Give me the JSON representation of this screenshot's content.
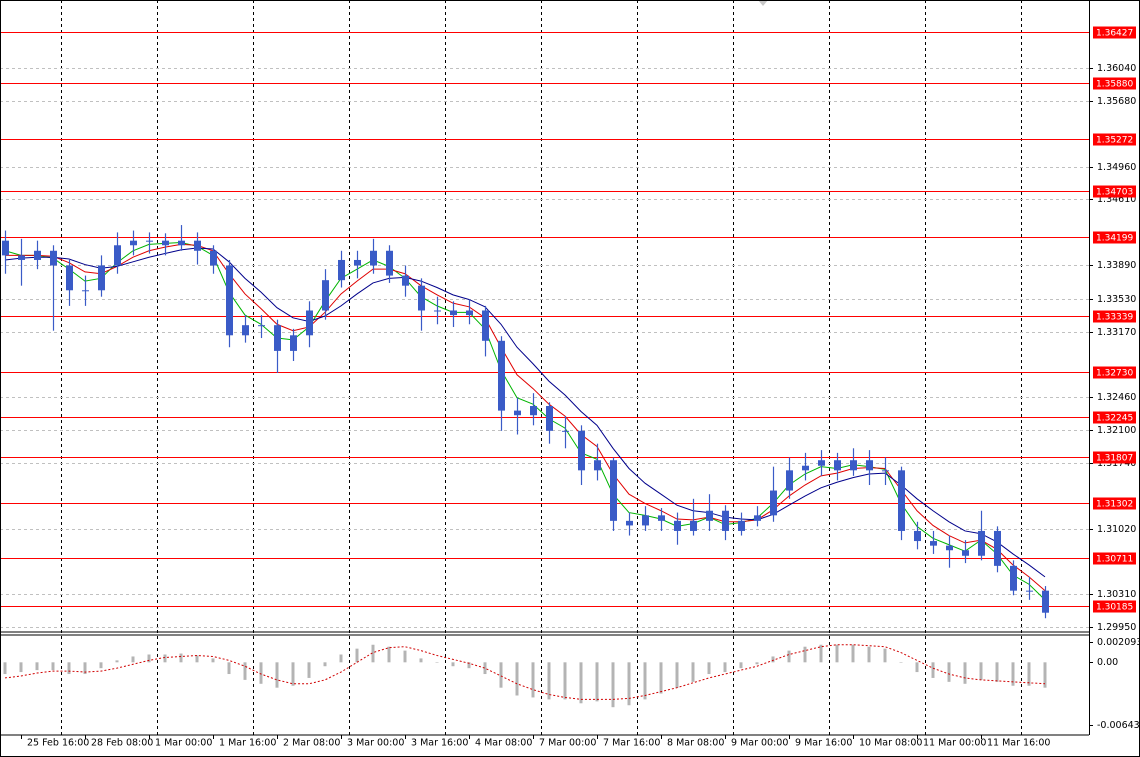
{
  "chart_data": {
    "type": "candlestick",
    "categories": [
      null,
      "25 Feb 16:00",
      null,
      null,
      null,
      "28 Feb 08:00",
      null,
      null,
      null,
      "1 Mar 00:00",
      null,
      null,
      null,
      "1 Mar 16:00",
      null,
      null,
      null,
      "2 Mar 08:00",
      null,
      null,
      null,
      "3 Mar 00:00",
      null,
      null,
      null,
      "3 Mar 16:00",
      null,
      null,
      null,
      "4 Mar 08:00",
      null,
      null,
      null,
      "7 Mar 00:00",
      null,
      null,
      null,
      "7 Mar 16:00",
      null,
      null,
      null,
      "8 Mar 08:00",
      null,
      null,
      null,
      "9 Mar 00:00",
      null,
      null,
      null,
      "9 Mar 16:00",
      null,
      null,
      null,
      "10 Mar 08:00",
      null,
      null,
      null,
      "11 Mar 00:00",
      null,
      null,
      null,
      "11 Mar 16:00",
      null,
      null,
      null,
      null
    ],
    "ohlc": [
      [
        1.3416,
        1.3427,
        1.338,
        1.34
      ],
      [
        1.34,
        1.3418,
        1.3367,
        1.3395
      ],
      [
        1.3395,
        1.3416,
        1.3385,
        1.3405
      ],
      [
        1.3405,
        1.3411,
        1.3318,
        1.3389
      ],
      [
        1.3389,
        1.3395,
        1.3345,
        1.3362
      ],
      [
        1.3362,
        1.3378,
        1.3345,
        1.3362
      ],
      [
        1.3362,
        1.34,
        1.3355,
        1.3389
      ],
      [
        1.3389,
        1.3425,
        1.338,
        1.3411
      ],
      [
        1.3411,
        1.3427,
        1.34,
        1.3416
      ],
      [
        1.3416,
        1.3425,
        1.3402,
        1.3416
      ],
      [
        1.3416,
        1.3424,
        1.34,
        1.3411
      ],
      [
        1.3411,
        1.3433,
        1.3405,
        1.3416
      ],
      [
        1.3416,
        1.3425,
        1.339,
        1.3405
      ],
      [
        1.3405,
        1.3411,
        1.338,
        1.3389
      ],
      [
        1.3389,
        1.3395,
        1.33,
        1.3313
      ],
      [
        1.3313,
        1.3335,
        1.3305,
        1.3324
      ],
      [
        1.3324,
        1.3335,
        1.331,
        1.3324
      ],
      [
        1.3324,
        1.333,
        1.3272,
        1.3296
      ],
      [
        1.3296,
        1.332,
        1.3285,
        1.3313
      ],
      [
        1.3313,
        1.335,
        1.33,
        1.334
      ],
      [
        1.334,
        1.3385,
        1.333,
        1.3373
      ],
      [
        1.3373,
        1.3405,
        1.3365,
        1.3395
      ],
      [
        1.3395,
        1.3405,
        1.3375,
        1.3389
      ],
      [
        1.3389,
        1.3418,
        1.338,
        1.3405
      ],
      [
        1.3405,
        1.3411,
        1.337,
        1.3378
      ],
      [
        1.3378,
        1.3389,
        1.3355,
        1.3367
      ],
      [
        1.3367,
        1.3375,
        1.3318,
        1.334
      ],
      [
        1.334,
        1.3355,
        1.3325,
        1.334
      ],
      [
        1.334,
        1.335,
        1.3322,
        1.3335
      ],
      [
        1.3335,
        1.3352,
        1.3325,
        1.334
      ],
      [
        1.334,
        1.3345,
        1.329,
        1.3307
      ],
      [
        1.3307,
        1.3312,
        1.3209,
        1.3231
      ],
      [
        1.3231,
        1.3245,
        1.3205,
        1.3226
      ],
      [
        1.3226,
        1.325,
        1.3215,
        1.3236
      ],
      [
        1.3236,
        1.324,
        1.3195,
        1.3209
      ],
      [
        1.3209,
        1.3225,
        1.319,
        1.3209
      ],
      [
        1.3209,
        1.3215,
        1.315,
        1.3166
      ],
      [
        1.3166,
        1.3195,
        1.3155,
        1.3177
      ],
      [
        1.3177,
        1.318,
        1.31,
        1.3111
      ],
      [
        1.3111,
        1.312,
        1.3095,
        1.3106
      ],
      [
        1.3106,
        1.3127,
        1.31,
        1.3117
      ],
      [
        1.3117,
        1.3125,
        1.31,
        1.3111
      ],
      [
        1.3111,
        1.312,
        1.3085,
        1.31
      ],
      [
        1.31,
        1.3135,
        1.3095,
        1.3111
      ],
      [
        1.3111,
        1.314,
        1.31,
        1.3122
      ],
      [
        1.3122,
        1.3128,
        1.309,
        1.31
      ],
      [
        1.31,
        1.312,
        1.3095,
        1.3111
      ],
      [
        1.3111,
        1.3127,
        1.3105,
        1.3117
      ],
      [
        1.3117,
        1.317,
        1.311,
        1.3144
      ],
      [
        1.3144,
        1.318,
        1.3135,
        1.3166
      ],
      [
        1.3166,
        1.3185,
        1.3155,
        1.3171
      ],
      [
        1.3171,
        1.3188,
        1.316,
        1.3177
      ],
      [
        1.3177,
        1.3185,
        1.3155,
        1.3166
      ],
      [
        1.3166,
        1.319,
        1.316,
        1.3177
      ],
      [
        1.3177,
        1.3188,
        1.315,
        1.3166
      ],
      [
        1.3166,
        1.318,
        1.315,
        1.3166
      ],
      [
        1.3166,
        1.317,
        1.309,
        1.31
      ],
      [
        1.31,
        1.311,
        1.308,
        1.3089
      ],
      [
        1.3089,
        1.31,
        1.3075,
        1.3084
      ],
      [
        1.3084,
        1.3095,
        1.306,
        1.3079
      ],
      [
        1.3079,
        1.309,
        1.3065,
        1.3073
      ],
      [
        1.3073,
        1.3122,
        1.3068,
        1.31
      ],
      [
        1.31,
        1.3105,
        1.3055,
        1.3062
      ],
      [
        1.3062,
        1.3068,
        1.303,
        1.3035
      ],
      [
        1.3035,
        1.305,
        1.3025,
        1.3035
      ],
      [
        1.3035,
        1.304,
        1.3005,
        1.3011
      ]
    ],
    "color": "#3a5bc7",
    "ylim": [
      1.299,
      1.3678
    ],
    "yticks": [
      {
        "value": 1.3604,
        "label": "1.36040"
      },
      {
        "value": 1.3568,
        "label": "1.35680"
      },
      {
        "value": 1.3496,
        "label": "1.34960"
      },
      {
        "value": 1.3461,
        "label": "1.34610"
      },
      {
        "value": 1.3389,
        "label": "1.33890"
      },
      {
        "value": 1.3353,
        "label": "1.33530"
      },
      {
        "value": 1.3317,
        "label": "1.33170"
      },
      {
        "value": 1.3246,
        "label": "1.32460"
      },
      {
        "value": 1.321,
        "label": "1.32100"
      },
      {
        "value": 1.3174,
        "label": "1.31740"
      },
      {
        "value": 1.3102,
        "label": "1.31020"
      },
      {
        "value": 1.3031,
        "label": "1.30310"
      },
      {
        "value": 1.2995,
        "label": "1.29950"
      }
    ],
    "grid": true,
    "levels": [
      1.36427,
      {
        "value": 1.3588,
        "label": "1.35880"
      },
      1.35272,
      1.34703,
      1.34199,
      1.33339,
      {
        "value": 1.3273,
        "label": "1.32730"
      },
      1.32245,
      1.31807,
      1.31302,
      1.30711,
      1.30185
    ],
    "level_color": "#ff0000",
    "ma": [
      {
        "color": "#00b400",
        "values": [
          1.3405,
          1.34,
          1.34,
          1.3397,
          1.3385,
          1.3372,
          1.3375,
          1.3392,
          1.3405,
          1.3412,
          1.3413,
          1.3414,
          1.341,
          1.34,
          1.336,
          1.3335,
          1.3325,
          1.331,
          1.3308,
          1.3322,
          1.335,
          1.3375,
          1.3385,
          1.3395,
          1.3388,
          1.3375,
          1.3355,
          1.3345,
          1.3338,
          1.3338,
          1.332,
          1.3275,
          1.3245,
          1.3238,
          1.3222,
          1.3212,
          1.3185,
          1.3178,
          1.314,
          1.312,
          1.3117,
          1.3113,
          1.3105,
          1.3108,
          1.3115,
          1.3107,
          1.3109,
          1.3114,
          1.313,
          1.315,
          1.3162,
          1.317,
          1.3168,
          1.3172,
          1.317,
          1.3167,
          1.313,
          1.3105,
          1.3092,
          1.3085,
          1.3078,
          1.309,
          1.3075,
          1.3052,
          1.3042,
          1.3025
        ]
      },
      {
        "color": "#e00000",
        "values": [
          1.34,
          1.34,
          1.34,
          1.3399,
          1.3392,
          1.3382,
          1.338,
          1.3388,
          1.3398,
          1.3405,
          1.3409,
          1.3412,
          1.3411,
          1.3405,
          1.338,
          1.3358,
          1.3342,
          1.3325,
          1.3318,
          1.3322,
          1.3338,
          1.3358,
          1.3372,
          1.3385,
          1.3385,
          1.338,
          1.3367,
          1.3357,
          1.3348,
          1.3344,
          1.3332,
          1.33,
          1.327,
          1.3255,
          1.3238,
          1.3225,
          1.3205,
          1.3192,
          1.3162,
          1.314,
          1.313,
          1.3122,
          1.3113,
          1.3112,
          1.3115,
          1.311,
          1.311,
          1.3112,
          1.3123,
          1.3138,
          1.315,
          1.316,
          1.3163,
          1.3168,
          1.3169,
          1.3168,
          1.3145,
          1.3122,
          1.3106,
          1.3095,
          1.3087,
          1.309,
          1.308,
          1.3063,
          1.305,
          1.3035
        ]
      },
      {
        "color": "#00008b",
        "values": [
          1.3395,
          1.3397,
          1.3398,
          1.3398,
          1.3396,
          1.339,
          1.3386,
          1.3388,
          1.3393,
          1.3398,
          1.3402,
          1.3406,
          1.3408,
          1.3407,
          1.3393,
          1.3375,
          1.336,
          1.3343,
          1.3332,
          1.3328,
          1.3334,
          1.3345,
          1.3358,
          1.337,
          1.3375,
          1.3376,
          1.3372,
          1.3365,
          1.3357,
          1.3352,
          1.3344,
          1.3325,
          1.33,
          1.3282,
          1.3263,
          1.3248,
          1.323,
          1.3215,
          1.319,
          1.3168,
          1.3152,
          1.314,
          1.3128,
          1.3122,
          1.312,
          1.3115,
          1.3113,
          1.3112,
          1.3118,
          1.3128,
          1.3138,
          1.3147,
          1.3153,
          1.3158,
          1.3162,
          1.3163,
          1.315,
          1.3135,
          1.3122,
          1.311,
          1.31,
          1.3097,
          1.3088,
          1.3075,
          1.3063,
          1.305
        ]
      }
    ],
    "macd": {
      "ylim": [
        -0.00745,
        0.0028
      ],
      "yticks": [
        0.002093,
        {
          "value": 0,
          "label": "0.00"
        },
        -0.006435
      ],
      "histogram_color": "#b4b4b4",
      "histogram": [
        -0.0012,
        -0.001,
        -0.0008,
        -0.0008,
        -0.0012,
        -0.0012,
        -0.0006,
        0.0002,
        0.0006,
        0.0008,
        0.0008,
        0.0009,
        0.0007,
        0.0004,
        -0.0012,
        -0.0018,
        -0.0022,
        -0.0026,
        -0.0024,
        -0.0016,
        -0.0004,
        0.0008,
        0.0014,
        0.0018,
        0.0016,
        0.0012,
        0.0004,
        0.0,
        -0.0004,
        -0.0006,
        -0.0012,
        -0.0026,
        -0.0034,
        -0.0036,
        -0.0038,
        -0.0038,
        -0.0042,
        -0.004,
        -0.0046,
        -0.0044,
        -0.0038,
        -0.0032,
        -0.0026,
        -0.002,
        -0.0012,
        -0.001,
        -0.0006,
        -0.0002,
        0.0006,
        0.0012,
        0.0016,
        0.0018,
        0.0018,
        0.0018,
        0.0016,
        0.0014,
        0.0,
        -0.001,
        -0.0016,
        -0.002,
        -0.0022,
        -0.0018,
        -0.002,
        -0.0024,
        -0.0024,
        -0.0026
      ],
      "signal_color": "#d00000",
      "signal": [
        -0.0016,
        -0.0014,
        -0.0011,
        -0.0009,
        -0.0009,
        -0.001,
        -0.0009,
        -0.0006,
        -0.0002,
        0.0002,
        0.0005,
        0.0006,
        0.0007,
        0.0006,
        0.0002,
        -0.0004,
        -0.0012,
        -0.0018,
        -0.0022,
        -0.0022,
        -0.0018,
        -0.001,
        0.0,
        0.001,
        0.0015,
        0.0016,
        0.0012,
        0.0007,
        0.0003,
        -0.0001,
        -0.0006,
        -0.0014,
        -0.0022,
        -0.0028,
        -0.0033,
        -0.0036,
        -0.0038,
        -0.0038,
        -0.0038,
        -0.0037,
        -0.0034,
        -0.003,
        -0.0026,
        -0.0021,
        -0.0016,
        -0.0012,
        -0.0008,
        -0.0004,
        0.0002,
        0.0008,
        0.0012,
        0.0016,
        0.0018,
        0.0018,
        0.0017,
        0.0016,
        0.001,
        0.0002,
        -0.0006,
        -0.0012,
        -0.0016,
        -0.0018,
        -0.0019,
        -0.002,
        -0.0021,
        -0.0022
      ]
    }
  }
}
